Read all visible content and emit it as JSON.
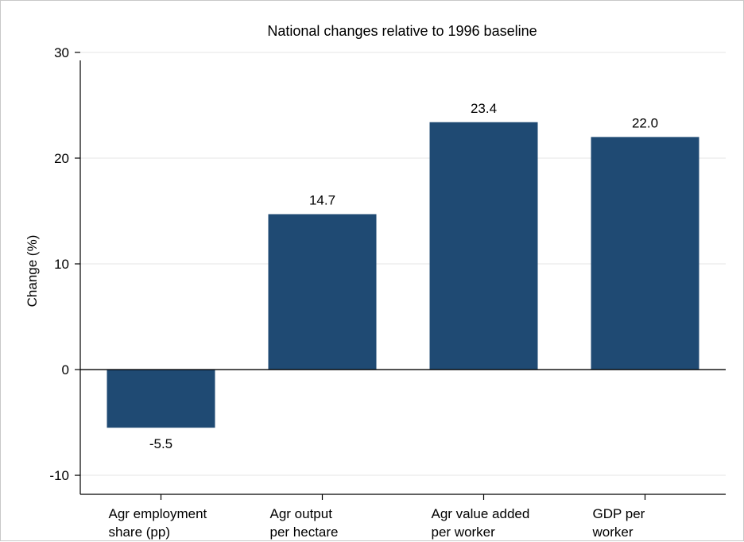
{
  "chart_data": {
    "type": "bar",
    "title": "National changes relative to 1996 baseline",
    "xlabel": "",
    "ylabel": "Change (%)",
    "categories": [
      [
        "Agr employment",
        "share (pp)"
      ],
      [
        "Agr output",
        "per hectare"
      ],
      [
        "Agr value added",
        "per worker"
      ],
      [
        "GDP per",
        "worker"
      ]
    ],
    "values": [
      -5.5,
      14.7,
      23.4,
      22.0
    ],
    "value_labels": [
      "-5.5",
      "14.7",
      "23.4",
      "22.0"
    ],
    "yticks": [
      -10,
      0,
      10,
      20,
      30
    ],
    "ylim": [
      -11.8,
      31.5
    ],
    "grid": true,
    "bar_color": "#1f4a73",
    "grid_color": "#e6e6e6"
  }
}
